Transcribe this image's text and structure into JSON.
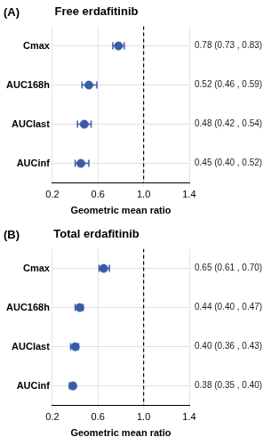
{
  "chart_data": [
    {
      "type": "forest",
      "title": "Free erdafitinib",
      "annotation": "(A)",
      "categories": [
        "Cmax",
        "AUC168h",
        "AUClast",
        "AUCinf"
      ],
      "values": [
        0.78,
        0.52,
        0.48,
        0.45
      ],
      "ci_lower": [
        0.73,
        0.46,
        0.42,
        0.4
      ],
      "ci_upper": [
        0.83,
        0.59,
        0.54,
        0.52
      ],
      "value_labels": [
        "0.78 (0.73 , 0.83)",
        "0.52 (0.46 , 0.59)",
        "0.48 (0.42 , 0.54)",
        "0.45 (0.40 , 0.52)"
      ],
      "data_labels": true,
      "xlabel": "Geometric mean ratio",
      "xlim": [
        0.2,
        1.4
      ],
      "xticks": [
        0.2,
        0.6,
        {
          "value": 1.0,
          "label": "1.0"
        },
        1.4
      ],
      "reference_line": 1.0,
      "grid": true,
      "color": "#3a5ba8"
    },
    {
      "type": "forest",
      "title": "Total erdafitinib",
      "annotation": "(B)",
      "categories": [
        "Cmax",
        "AUC168h",
        "AUClast",
        "AUCinf"
      ],
      "values": [
        0.65,
        0.44,
        0.4,
        0.38
      ],
      "ci_lower": [
        0.61,
        0.4,
        0.36,
        0.35
      ],
      "ci_upper": [
        0.7,
        0.47,
        0.43,
        0.4
      ],
      "value_labels": [
        "0.65 (0.61 , 0.70)",
        "0.44 (0.40 , 0.47)",
        "0.40 (0.36 , 0.43)",
        "0.38 (0.35 , 0.40)"
      ],
      "data_labels": true,
      "xlabel": "Geometric mean ratio",
      "xlim": [
        0.2,
        1.4
      ],
      "xticks": [
        0.2,
        0.6,
        {
          "value": 1.0,
          "label": "1.0"
        },
        1.4
      ],
      "reference_line": 1.0,
      "grid": true,
      "color": "#3a5ba8"
    }
  ]
}
